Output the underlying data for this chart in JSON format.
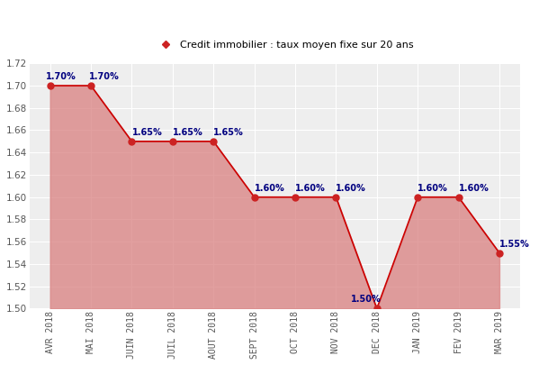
{
  "categories": [
    "AVR 2018",
    "MAI 2018",
    "JUIN 2018",
    "JUIL 2018",
    "AOUT 2018",
    "SEPT 2018",
    "OCT 2018",
    "NOV 2018",
    "DEC 2018",
    "JAN 2019",
    "FEV 2019",
    "MAR 2019"
  ],
  "values": [
    1.7,
    1.7,
    1.65,
    1.65,
    1.65,
    1.6,
    1.6,
    1.6,
    1.5,
    1.6,
    1.6,
    1.55
  ],
  "labels": [
    "1.70%",
    "1.70%",
    "1.65%",
    "1.65%",
    "1.65%",
    "1.60%",
    "1.60%",
    "1.60%",
    "1.50%",
    "1.60%",
    "1.60%",
    "1.55%"
  ],
  "legend_label": "Credit immobilier : taux moyen fixe sur 20 ans",
  "ylim": [
    1.5,
    1.72
  ],
  "yticks": [
    1.5,
    1.52,
    1.54,
    1.56,
    1.58,
    1.6,
    1.62,
    1.64,
    1.66,
    1.68,
    1.7,
    1.72
  ],
  "line_color": "#cc0000",
  "fill_color": "#d98080",
  "fill_alpha": 0.75,
  "marker_color": "#cc2222",
  "label_color": "#000080",
  "plot_bg_color": "#eeeeee",
  "figure_bg_color": "#ffffff",
  "grid_color": "#ffffff",
  "legend_marker_color": "#cc2222",
  "fill_baseline": 1.5,
  "label_offsets_y": [
    0.004,
    0.004,
    0.004,
    0.004,
    0.004,
    0.004,
    0.004,
    0.004,
    0.004,
    0.004,
    0.004,
    0.004
  ],
  "label_ha": [
    "left",
    "left",
    "left",
    "left",
    "left",
    "left",
    "left",
    "left",
    "right",
    "left",
    "left",
    "left"
  ]
}
